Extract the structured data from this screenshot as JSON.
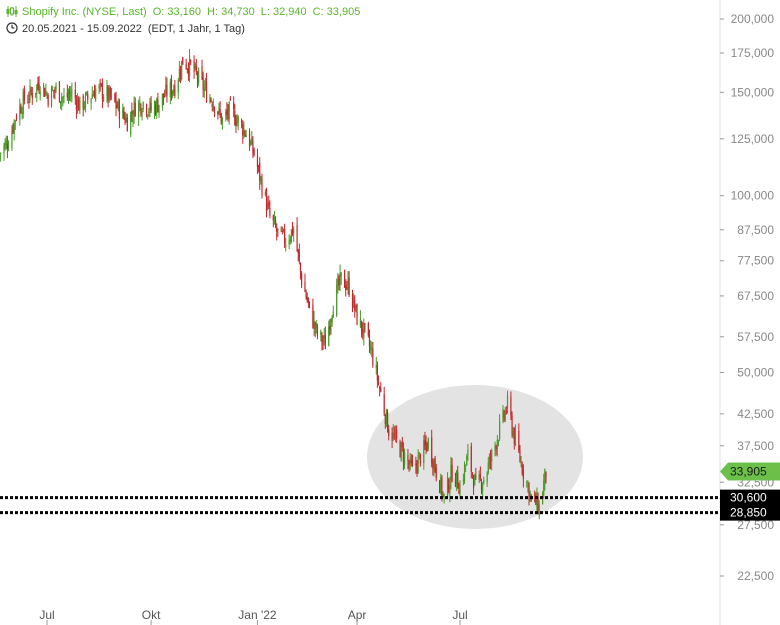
{
  "header": {
    "title": "Shopify Inc. (NYSE, Last)",
    "open": "O: 33,160",
    "high": "H: 34,730",
    "low": "L: 32,940",
    "close": "C: 33,905",
    "date_range": "20.05.2021 - 15.09.2022",
    "settings": "(EDT, 1 Jahr, 1 Tag)"
  },
  "chart_data": {
    "type": "candlestick",
    "scale": "log",
    "grid": false,
    "xlabel": "",
    "ylabel": "",
    "ylim": [
      19500,
      215000
    ],
    "x_tick_labels": [
      "Jul",
      "Okt",
      "Jan '22",
      "Apr",
      "Jul"
    ],
    "y_tick_labels": [
      "200,000",
      "175,000",
      "150,000",
      "125,000",
      "100,000",
      "87,500",
      "77,500",
      "67,500",
      "57,500",
      "50,000",
      "42,500",
      "37,500",
      "32,500",
      "27,500",
      "22,500"
    ],
    "y_tick_values": [
      200000,
      175000,
      150000,
      125000,
      100000,
      87500,
      77500,
      67500,
      57500,
      50000,
      42500,
      37500,
      32500,
      27500,
      22500
    ],
    "series": [
      {
        "dates": [
          "2021-05-20",
          "2021-05-28",
          "2021-06-04",
          "2021-06-11",
          "2021-06-18",
          "2021-06-25",
          "2021-07-02",
          "2021-07-09",
          "2021-07-16",
          "2021-07-23",
          "2021-07-30",
          "2021-08-06",
          "2021-08-13",
          "2021-08-20",
          "2021-08-27",
          "2021-09-03",
          "2021-09-10",
          "2021-09-17",
          "2021-09-24",
          "2021-10-01",
          "2021-10-08",
          "2021-10-15",
          "2021-10-22",
          "2021-10-29",
          "2021-11-05",
          "2021-11-12",
          "2021-11-19",
          "2021-11-26",
          "2021-12-03",
          "2021-12-10",
          "2021-12-17",
          "2021-12-24",
          "2021-12-31",
          "2022-01-07",
          "2022-01-14",
          "2022-01-21",
          "2022-01-28",
          "2022-02-04",
          "2022-02-11",
          "2022-02-18",
          "2022-02-25",
          "2022-03-04",
          "2022-03-11",
          "2022-03-18",
          "2022-03-25",
          "2022-04-01",
          "2022-04-08",
          "2022-04-14",
          "2022-04-22",
          "2022-04-29",
          "2022-05-06",
          "2022-05-13",
          "2022-05-20",
          "2022-05-27",
          "2022-06-03",
          "2022-06-10",
          "2022-06-17",
          "2022-06-24",
          "2022-07-01",
          "2022-07-08",
          "2022-07-15",
          "2022-07-22",
          "2022-07-29",
          "2022-08-05",
          "2022-08-12",
          "2022-08-19",
          "2022-08-26",
          "2022-09-02",
          "2022-09-09",
          "2022-09-15"
        ],
        "close": [
          118000,
          124000,
          138000,
          146000,
          150000,
          156000,
          148000,
          152000,
          146000,
          150000,
          142000,
          146000,
          152000,
          150000,
          146000,
          140000,
          134000,
          142000,
          144000,
          140000,
          144000,
          150000,
          154000,
          170000,
          166000,
          158000,
          150000,
          144000,
          134000,
          140000,
          134000,
          128000,
          118000,
          104000,
          92000,
          86000,
          84000,
          88000,
          72000,
          64000,
          58000,
          56000,
          66000,
          72000,
          70000,
          62000,
          58000,
          54000,
          46000,
          40000,
          38000,
          36000,
          34000,
          36000,
          38000,
          34000,
          30500,
          34000,
          32000,
          36000,
          32000,
          33000,
          36000,
          40000,
          44000,
          38000,
          34000,
          30500,
          29500,
          33905
        ]
      }
    ],
    "last_price_label": "33,905",
    "support_levels": [
      {
        "label": "30,600",
        "value": 30600
      },
      {
        "label": "28,850",
        "value": 28850
      }
    ],
    "highlight": "shaded ellipse around the Apr–Sep 2022 consolidation range",
    "colors": {
      "up": "#4a9a2a",
      "down": "#c0282d",
      "last_price": "#6cc04a",
      "support": "#000000",
      "highlight": "#e3e3e3"
    }
  }
}
